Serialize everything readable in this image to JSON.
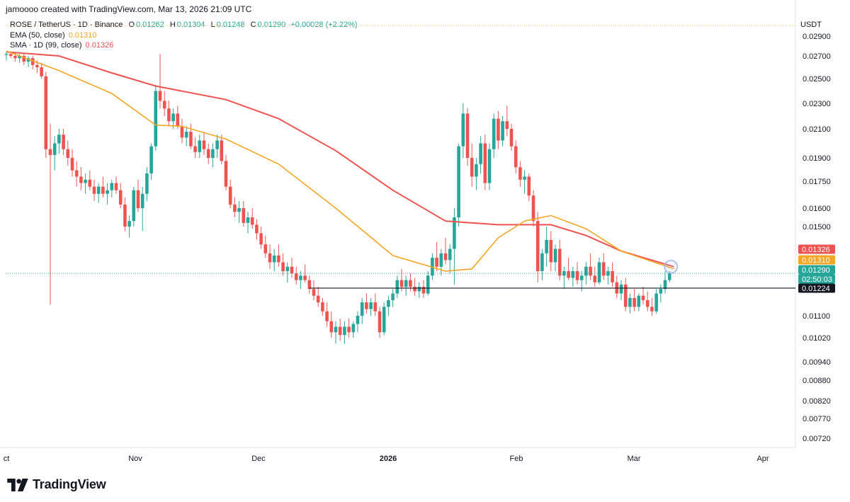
{
  "header": {
    "created_by": "jamoooo created with TradingView.com, Mar 13, 2026 21:09 UTC"
  },
  "legend": {
    "symbol": "ROSE / TetherUS · 1D · Binance",
    "ohlc": {
      "o_label": "O",
      "o": "0.01262",
      "h_label": "H",
      "h": "0.01304",
      "l_label": "L",
      "l": "0.01248",
      "c_label": "C",
      "c": "0.01290",
      "change": "+0.00028 (+2.22%)"
    },
    "ema": {
      "label": "EMA (50, close)",
      "value": "0.01310"
    },
    "sma": {
      "label": "SMA · 1D (99, close)",
      "value": "0.01326"
    }
  },
  "axis": {
    "unit": "USDT"
  },
  "brand": {
    "name": "TradingView",
    "logo_icon": "tradingview-logo-icon"
  },
  "colors": {
    "up": "#26a69a",
    "down": "#ef5350",
    "ema": "#f5a623",
    "sma": "#ef5350",
    "price_line": "#26a69a"
  },
  "chart_data": {
    "type": "candlestick",
    "y_ticks": [
      "0.02900",
      "0.02700",
      "0.02500",
      "0.02300",
      "0.02100",
      "0.01900",
      "0.01750",
      "0.01600",
      "0.01500",
      "0.01100",
      "0.01020",
      "0.00940",
      "0.00880",
      "0.00820",
      "0.00770",
      "0.00720"
    ],
    "x_ticks": [
      {
        "label": "ct",
        "bold": false
      },
      {
        "label": "Nov",
        "bold": false
      },
      {
        "label": "Dec",
        "bold": false
      },
      {
        "label": "2026",
        "bold": true
      },
      {
        "label": "Feb",
        "bold": false
      },
      {
        "label": "Mar",
        "bold": false
      },
      {
        "label": "Apr",
        "bold": false
      }
    ],
    "price_labels": [
      {
        "text": "0.01326",
        "color": "#ef5350"
      },
      {
        "text": "0.01310",
        "color": "#f5a623"
      },
      {
        "text": "0.01290",
        "color": "#26a69a"
      },
      {
        "text": "02:50:03",
        "color": "#26a69a"
      },
      {
        "text": "0.01224",
        "color": "#131722"
      }
    ],
    "horizontal_line": 0.01224,
    "last_price": 0.0129,
    "first_date": "2025-10-01",
    "candles": [
      [
        0.0271,
        0.0274,
        0.0266,
        0.0272
      ],
      [
        0.0272,
        0.0274,
        0.0268,
        0.027
      ],
      [
        0.027,
        0.0273,
        0.0265,
        0.0268
      ],
      [
        0.0268,
        0.0272,
        0.0264,
        0.027
      ],
      [
        0.027,
        0.0272,
        0.0262,
        0.0265
      ],
      [
        0.0265,
        0.027,
        0.026,
        0.0268
      ],
      [
        0.0268,
        0.027,
        0.0258,
        0.0262
      ],
      [
        0.0262,
        0.0266,
        0.0255,
        0.026
      ],
      [
        0.026,
        0.0264,
        0.025,
        0.0252
      ],
      [
        0.0252,
        0.0256,
        0.019,
        0.0196
      ],
      [
        0.0196,
        0.0214,
        0.0115,
        0.0192
      ],
      [
        0.0192,
        0.0205,
        0.0182,
        0.02
      ],
      [
        0.02,
        0.021,
        0.0193,
        0.0206
      ],
      [
        0.0206,
        0.021,
        0.0192,
        0.0196
      ],
      [
        0.0196,
        0.0202,
        0.0185,
        0.019
      ],
      [
        0.019,
        0.0196,
        0.0178,
        0.0182
      ],
      [
        0.0182,
        0.0188,
        0.0172,
        0.0178
      ],
      [
        0.0178,
        0.0184,
        0.017,
        0.0174
      ],
      [
        0.0174,
        0.018,
        0.0168,
        0.0176
      ],
      [
        0.0176,
        0.0182,
        0.017,
        0.0172
      ],
      [
        0.0172,
        0.0176,
        0.0164,
        0.0168
      ],
      [
        0.0168,
        0.0174,
        0.0163,
        0.0172
      ],
      [
        0.0172,
        0.0178,
        0.0166,
        0.0168
      ],
      [
        0.0168,
        0.0174,
        0.0162,
        0.017
      ],
      [
        0.017,
        0.0176,
        0.0166,
        0.0174
      ],
      [
        0.0174,
        0.0178,
        0.0168,
        0.017
      ],
      [
        0.017,
        0.0174,
        0.016,
        0.0162
      ],
      [
        0.0162,
        0.0166,
        0.0148,
        0.015
      ],
      [
        0.015,
        0.0156,
        0.0145,
        0.0153
      ],
      [
        0.0153,
        0.0172,
        0.015,
        0.017
      ],
      [
        0.017,
        0.0176,
        0.0158,
        0.016
      ],
      [
        0.016,
        0.0172,
        0.0148,
        0.0168
      ],
      [
        0.0168,
        0.0184,
        0.0164,
        0.018
      ],
      [
        0.018,
        0.02,
        0.0176,
        0.0198
      ],
      [
        0.0198,
        0.0245,
        0.0195,
        0.024
      ],
      [
        0.024,
        0.0272,
        0.0226,
        0.0232
      ],
      [
        0.0232,
        0.024,
        0.022,
        0.0226
      ],
      [
        0.0226,
        0.0232,
        0.0212,
        0.0216
      ],
      [
        0.0216,
        0.0226,
        0.021,
        0.0222
      ],
      [
        0.0222,
        0.0228,
        0.021,
        0.0212
      ],
      [
        0.0212,
        0.0218,
        0.02,
        0.0204
      ],
      [
        0.0204,
        0.0212,
        0.0198,
        0.0208
      ],
      [
        0.0208,
        0.0214,
        0.0196,
        0.0198
      ],
      [
        0.0198,
        0.0204,
        0.019,
        0.0194
      ],
      [
        0.0194,
        0.0206,
        0.019,
        0.0202
      ],
      [
        0.0202,
        0.0208,
        0.0192,
        0.0196
      ],
      [
        0.0196,
        0.02,
        0.0186,
        0.019
      ],
      [
        0.019,
        0.02,
        0.0184,
        0.0196
      ],
      [
        0.0196,
        0.0206,
        0.019,
        0.0202
      ],
      [
        0.0202,
        0.0206,
        0.0186,
        0.0188
      ],
      [
        0.0188,
        0.0192,
        0.017,
        0.0172
      ],
      [
        0.0172,
        0.0176,
        0.016,
        0.0162
      ],
      [
        0.0162,
        0.0166,
        0.0155,
        0.0158
      ],
      [
        0.0158,
        0.0164,
        0.0152,
        0.016
      ],
      [
        0.016,
        0.0164,
        0.015,
        0.0152
      ],
      [
        0.0152,
        0.0158,
        0.0147,
        0.0155
      ],
      [
        0.0155,
        0.016,
        0.0149,
        0.0151
      ],
      [
        0.0151,
        0.0154,
        0.0144,
        0.0147
      ],
      [
        0.0147,
        0.015,
        0.014,
        0.0142
      ],
      [
        0.0142,
        0.0146,
        0.0136,
        0.0138
      ],
      [
        0.0138,
        0.0142,
        0.0131,
        0.0134
      ],
      [
        0.0134,
        0.014,
        0.013,
        0.0137
      ],
      [
        0.0137,
        0.0142,
        0.0132,
        0.0134
      ],
      [
        0.0134,
        0.0138,
        0.0128,
        0.013
      ],
      [
        0.013,
        0.0134,
        0.0125,
        0.0132
      ],
      [
        0.0132,
        0.0136,
        0.0127,
        0.0129
      ],
      [
        0.0129,
        0.0132,
        0.0124,
        0.0126
      ],
      [
        0.0126,
        0.013,
        0.0122,
        0.0128
      ],
      [
        0.0128,
        0.0133,
        0.0125,
        0.0126
      ],
      [
        0.0126,
        0.0128,
        0.012,
        0.0122
      ],
      [
        0.0122,
        0.0126,
        0.0117,
        0.0119
      ],
      [
        0.0119,
        0.0123,
        0.0114,
        0.0116
      ],
      [
        0.0116,
        0.0118,
        0.011,
        0.0112
      ],
      [
        0.0112,
        0.0116,
        0.0106,
        0.0108
      ],
      [
        0.0108,
        0.0112,
        0.0102,
        0.0104
      ],
      [
        0.0104,
        0.0108,
        0.01,
        0.0106
      ],
      [
        0.0106,
        0.0109,
        0.0101,
        0.0103
      ],
      [
        0.0103,
        0.0108,
        0.01,
        0.0106
      ],
      [
        0.0106,
        0.0109,
        0.0102,
        0.0104
      ],
      [
        0.0104,
        0.0108,
        0.0102,
        0.0107
      ],
      [
        0.0107,
        0.0112,
        0.0104,
        0.011
      ],
      [
        0.011,
        0.0118,
        0.0107,
        0.0116
      ],
      [
        0.0116,
        0.012,
        0.0111,
        0.0113
      ],
      [
        0.0113,
        0.0118,
        0.011,
        0.0116
      ],
      [
        0.0116,
        0.012,
        0.011,
        0.0112
      ],
      [
        0.0112,
        0.0114,
        0.0102,
        0.0104
      ],
      [
        0.0104,
        0.0116,
        0.0103,
        0.0114
      ],
      [
        0.0114,
        0.0119,
        0.011,
        0.0117
      ],
      [
        0.0117,
        0.0122,
        0.0114,
        0.012
      ],
      [
        0.012,
        0.0128,
        0.0118,
        0.0126
      ],
      [
        0.0126,
        0.0131,
        0.0121,
        0.0123
      ],
      [
        0.0123,
        0.0128,
        0.0119,
        0.0126
      ],
      [
        0.0126,
        0.0129,
        0.0121,
        0.0123
      ],
      [
        0.0123,
        0.0127,
        0.0119,
        0.0121
      ],
      [
        0.0121,
        0.0125,
        0.0118,
        0.0123
      ],
      [
        0.0123,
        0.0126,
        0.0118,
        0.012
      ],
      [
        0.012,
        0.013,
        0.0119,
        0.0128
      ],
      [
        0.0128,
        0.0138,
        0.0126,
        0.0136
      ],
      [
        0.0136,
        0.0143,
        0.013,
        0.0132
      ],
      [
        0.0132,
        0.014,
        0.0128,
        0.0138
      ],
      [
        0.0138,
        0.0145,
        0.0133,
        0.0135
      ],
      [
        0.0135,
        0.0142,
        0.0129,
        0.014
      ],
      [
        0.014,
        0.016,
        0.0124,
        0.0155
      ],
      [
        0.0155,
        0.02,
        0.015,
        0.0198
      ],
      [
        0.0198,
        0.023,
        0.019,
        0.0222
      ],
      [
        0.0222,
        0.0226,
        0.0185,
        0.019
      ],
      [
        0.019,
        0.02,
        0.0172,
        0.0178
      ],
      [
        0.0178,
        0.019,
        0.017,
        0.0186
      ],
      [
        0.0186,
        0.0205,
        0.018,
        0.02
      ],
      [
        0.02,
        0.0206,
        0.017,
        0.0174
      ],
      [
        0.0174,
        0.02,
        0.017,
        0.0196
      ],
      [
        0.0196,
        0.0222,
        0.019,
        0.0218
      ],
      [
        0.0218,
        0.0224,
        0.0196,
        0.0202
      ],
      [
        0.0202,
        0.022,
        0.0198,
        0.0216
      ],
      [
        0.0216,
        0.0228,
        0.0205,
        0.021
      ],
      [
        0.021,
        0.0214,
        0.0195,
        0.0198
      ],
      [
        0.0198,
        0.0202,
        0.018,
        0.0184
      ],
      [
        0.0184,
        0.0188,
        0.0172,
        0.0176
      ],
      [
        0.0176,
        0.0182,
        0.0168,
        0.0178
      ],
      [
        0.0178,
        0.018,
        0.0164,
        0.0167
      ],
      [
        0.0167,
        0.017,
        0.015,
        0.0153
      ],
      [
        0.0153,
        0.0158,
        0.0125,
        0.013
      ],
      [
        0.013,
        0.014,
        0.0126,
        0.0138
      ],
      [
        0.0138,
        0.015,
        0.0132,
        0.0144
      ],
      [
        0.0144,
        0.0148,
        0.013,
        0.0134
      ],
      [
        0.0134,
        0.0142,
        0.013,
        0.014
      ],
      [
        0.014,
        0.0144,
        0.0126,
        0.0128
      ],
      [
        0.0128,
        0.0132,
        0.0122,
        0.013
      ],
      [
        0.013,
        0.0136,
        0.0126,
        0.0127
      ],
      [
        0.0127,
        0.0132,
        0.0123,
        0.013
      ],
      [
        0.013,
        0.0134,
        0.0124,
        0.0126
      ],
      [
        0.0126,
        0.013,
        0.0121,
        0.0128
      ],
      [
        0.0128,
        0.0134,
        0.0124,
        0.0132
      ],
      [
        0.0132,
        0.0138,
        0.0126,
        0.0128
      ],
      [
        0.0128,
        0.0132,
        0.0123,
        0.0125
      ],
      [
        0.0125,
        0.0136,
        0.0124,
        0.0134
      ],
      [
        0.0134,
        0.0138,
        0.0126,
        0.0128
      ],
      [
        0.0128,
        0.0132,
        0.0124,
        0.013
      ],
      [
        0.013,
        0.0134,
        0.0123,
        0.0125
      ],
      [
        0.0125,
        0.0128,
        0.0118,
        0.012
      ],
      [
        0.012,
        0.0126,
        0.0117,
        0.0124
      ],
      [
        0.0124,
        0.0127,
        0.0112,
        0.0114
      ],
      [
        0.0114,
        0.012,
        0.0111,
        0.0118
      ],
      [
        0.0118,
        0.0122,
        0.0112,
        0.0114
      ],
      [
        0.0114,
        0.012,
        0.0112,
        0.0119
      ],
      [
        0.0119,
        0.0123,
        0.0115,
        0.0117
      ],
      [
        0.0117,
        0.0121,
        0.0112,
        0.0114
      ],
      [
        0.0114,
        0.0118,
        0.011,
        0.0112
      ],
      [
        0.0112,
        0.0122,
        0.0111,
        0.012
      ],
      [
        0.012,
        0.0124,
        0.0116,
        0.0122
      ],
      [
        0.0122,
        0.013,
        0.012,
        0.0126
      ],
      [
        0.0126,
        0.013,
        0.0125,
        0.0129
      ]
    ],
    "ema": [
      [
        0,
        0.0275
      ],
      [
        12,
        0.0257
      ],
      [
        24,
        0.0238
      ],
      [
        34,
        0.0213
      ],
      [
        40,
        0.0212
      ],
      [
        50,
        0.0203
      ],
      [
        62,
        0.0186
      ],
      [
        75,
        0.016
      ],
      [
        88,
        0.0137
      ],
      [
        100,
        0.013
      ],
      [
        106,
        0.0131
      ],
      [
        112,
        0.0145
      ],
      [
        118,
        0.0153
      ],
      [
        124,
        0.0156
      ],
      [
        132,
        0.0149
      ],
      [
        140,
        0.0139
      ],
      [
        152,
        0.0131
      ]
    ],
    "sma": [
      [
        0,
        0.0274
      ],
      [
        12,
        0.027
      ],
      [
        24,
        0.0255
      ],
      [
        34,
        0.0244
      ],
      [
        50,
        0.0233
      ],
      [
        62,
        0.0218
      ],
      [
        75,
        0.0195
      ],
      [
        88,
        0.017
      ],
      [
        100,
        0.0153
      ],
      [
        112,
        0.0151
      ],
      [
        124,
        0.0151
      ],
      [
        132,
        0.0146
      ],
      [
        140,
        0.0139
      ],
      [
        152,
        0.0132
      ]
    ]
  }
}
